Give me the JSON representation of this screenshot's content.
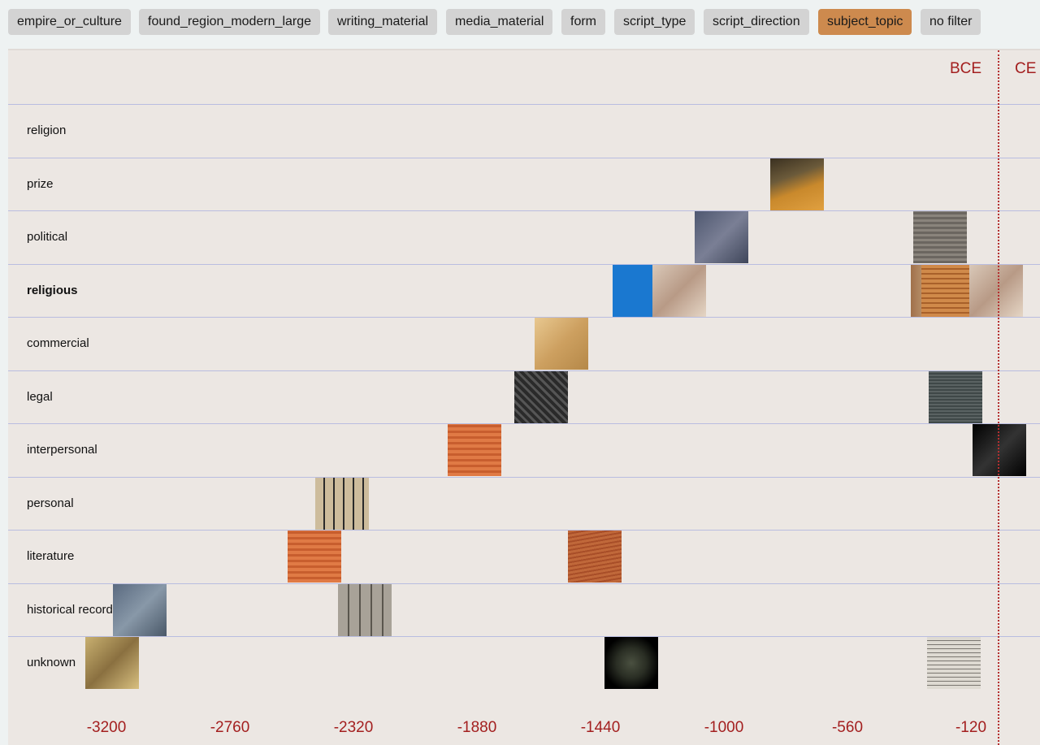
{
  "filters": [
    {
      "label": "empire_or_culture",
      "active": false
    },
    {
      "label": "found_region_modern_large",
      "active": false
    },
    {
      "label": "writing_material",
      "active": false
    },
    {
      "label": "media_material",
      "active": false
    },
    {
      "label": "form",
      "active": false
    },
    {
      "label": "script_type",
      "active": false
    },
    {
      "label": "script_direction",
      "active": false
    },
    {
      "label": "subject_topic",
      "active": true
    },
    {
      "label": "no filter",
      "active": false
    }
  ],
  "era": {
    "bce": "BCE",
    "ce": "CE"
  },
  "axis_ticks": [
    "-3200",
    "-2760",
    "-2320",
    "-1880",
    "-1440",
    "-1000",
    "-560",
    "-120"
  ],
  "rows": [
    {
      "label": "religion",
      "items": []
    },
    {
      "label": "prize",
      "items": [
        {
          "year": -740,
          "kind": "pottery"
        }
      ]
    },
    {
      "label": "political",
      "items": [
        {
          "year": -1010,
          "kind": "relief"
        },
        {
          "year": -230,
          "kind": "stele"
        }
      ]
    },
    {
      "label": "religious",
      "items": [
        {
          "year": -1300,
          "kind": "blue-scan"
        },
        {
          "year": -1160,
          "kind": "stone"
        },
        {
          "year": -240,
          "kind": "wood"
        },
        {
          "year": -200,
          "kind": "papyrus"
        },
        {
          "year": -100,
          "kind": "papyrus"
        },
        {
          "year": -30,
          "kind": "stone"
        }
      ]
    },
    {
      "label": "commercial",
      "items": [
        {
          "year": -1580,
          "kind": "tan-tablet"
        }
      ]
    },
    {
      "label": "legal",
      "items": [
        {
          "year": -1650,
          "kind": "dark-cuneiform"
        },
        {
          "year": -175,
          "kind": "dark-stone"
        }
      ]
    },
    {
      "label": "interpersonal",
      "items": [
        {
          "year": -1890,
          "kind": "orange-tablet"
        },
        {
          "year": -20,
          "kind": "black"
        }
      ]
    },
    {
      "label": "personal",
      "items": [
        {
          "year": -2360,
          "kind": "hieroglyph"
        }
      ]
    },
    {
      "label": "literature",
      "items": [
        {
          "year": -2460,
          "kind": "orange-tablet"
        },
        {
          "year": -1460,
          "kind": "lined-tablet"
        }
      ]
    },
    {
      "label": "historical record",
      "items": [
        {
          "year": -3080,
          "kind": "grey-relief"
        },
        {
          "year": -2280,
          "kind": "grey-stone"
        }
      ]
    },
    {
      "label": "unknown",
      "items": [
        {
          "year": -3180,
          "kind": "hieroglyph-gold"
        },
        {
          "year": -1330,
          "kind": "dark-fragment"
        },
        {
          "year": -180,
          "kind": "sketch"
        }
      ]
    }
  ]
}
